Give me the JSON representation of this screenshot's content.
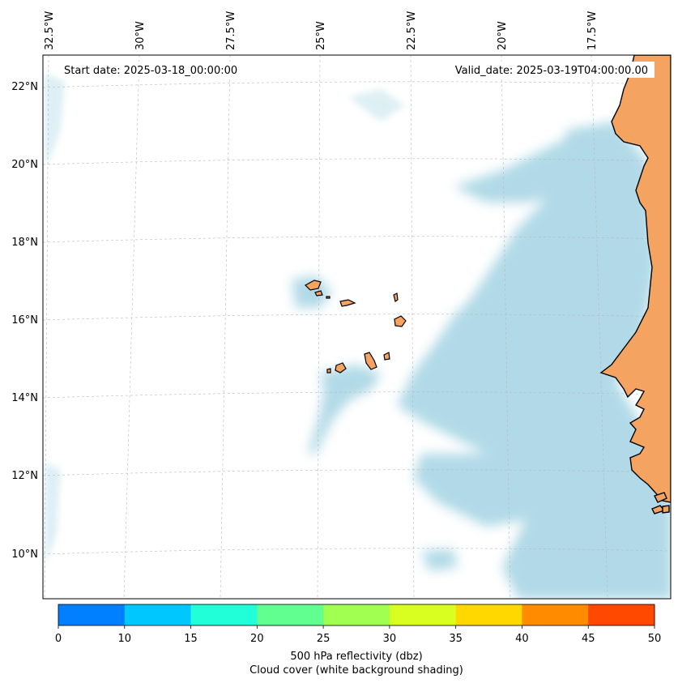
{
  "header": {
    "start_date": "Start date: 2025-03-18_00:00:00",
    "valid_date": "Valid_date: 2025-03-19T04:00:00.00"
  },
  "axes": {
    "longitude_labels": [
      "32.5°W",
      "30°W",
      "27.5°W",
      "25°W",
      "22.5°W",
      "20°W",
      "17.5°W"
    ],
    "latitude_labels": [
      "22°N",
      "20°N",
      "18°N",
      "16°N",
      "14°N",
      "12°N",
      "10°N"
    ]
  },
  "colorbar": {
    "ticks": [
      "0",
      "10",
      "15",
      "20",
      "25",
      "30",
      "35",
      "40",
      "45",
      "50"
    ],
    "colors": [
      "#0080ff",
      "#00c8ff",
      "#20ffd8",
      "#60ff90",
      "#a0ff50",
      "#d8ff20",
      "#ffd800",
      "#ff8c00",
      "#ff4800"
    ],
    "label_line1": "500 hPa reflectivity (dbz)",
    "label_line2": "Cloud cover (white background shading)"
  },
  "style": {
    "land_color": "#f4a460",
    "cloud_color": "#add8e6",
    "coast_color": "#000000"
  }
}
